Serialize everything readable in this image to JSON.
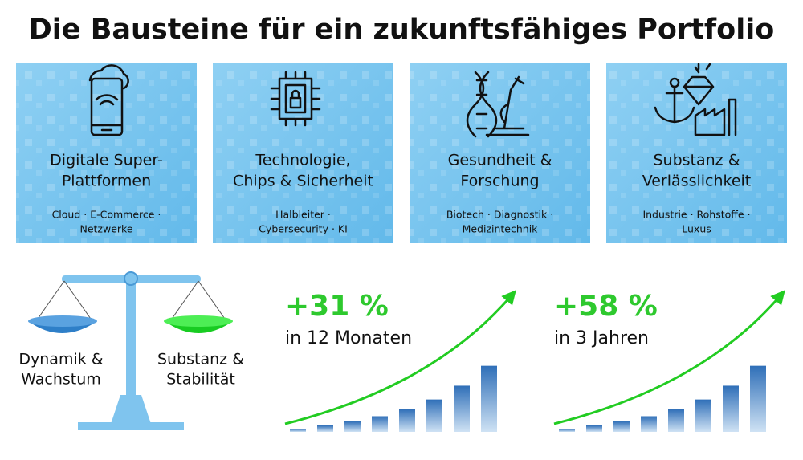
{
  "header": {
    "title": "Die Bausteine für ein zukunftsfähiges Portfolio"
  },
  "cards": [
    {
      "title": [
        "Digitale Super-",
        "Plattformen"
      ],
      "subtitle": [
        "Cloud · E-Commerce ·",
        "Netzwerke"
      ]
    },
    {
      "title": [
        "Technologie,",
        "Chips & Sicherheit"
      ],
      "subtitle": [
        "Halbleiter ·",
        "Cybersecurity · KI"
      ]
    },
    {
      "title": [
        "Gesundheit &",
        "Forschung"
      ],
      "subtitle": [
        "Biotech · Diagnostik ·",
        "Medizintechnik"
      ]
    },
    {
      "title": [
        "Substanz &",
        "Verlässlichkeit"
      ],
      "subtitle": [
        "Industrie · Rohstoffe ·",
        "Luxus"
      ]
    }
  ],
  "balance": {
    "left": [
      "Dynamik &",
      "Wachstum"
    ],
    "right": [
      "Substanz &",
      "Stabilität"
    ]
  },
  "growth": [
    {
      "value": "+31 %",
      "period": "in 12 Monaten"
    },
    {
      "value": "+58 %",
      "period": "in 3 Jahren"
    }
  ]
}
